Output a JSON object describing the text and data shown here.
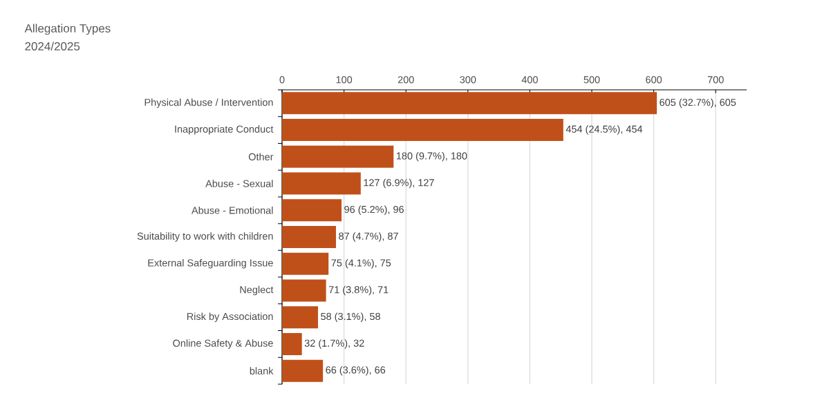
{
  "chart_data": {
    "type": "bar",
    "orientation": "horizontal",
    "title": "Allegation Types",
    "subtitle": "2024/2025",
    "categories": [
      "Physical Abuse / Intervention",
      "Inappropriate Conduct",
      "Other",
      "Abuse - Sexual",
      "Abuse - Emotional",
      "Suitability to work with children",
      "External Safeguarding Issue",
      "Neglect",
      "Risk by Association",
      "Online Safety & Abuse",
      "blank"
    ],
    "values": [
      605,
      454,
      180,
      127,
      96,
      87,
      75,
      71,
      58,
      32,
      66
    ],
    "value_labels": [
      "605 (32.7%), 605",
      "454 (24.5%), 454",
      "180 (9.7%), 180",
      "127 (6.9%), 127",
      "96 (5.2%), 96",
      "87 (4.7%), 87",
      "75 (4.1%), 75",
      "71 (3.8%), 71",
      "58 (3.1%), 58",
      "32 (1.7%), 32",
      "66 (3.6%), 66"
    ],
    "color": "#c0501a",
    "xlim": [
      0,
      750
    ],
    "xticks": [
      0,
      100,
      200,
      300,
      400,
      500,
      600,
      700
    ],
    "grid": "x"
  }
}
